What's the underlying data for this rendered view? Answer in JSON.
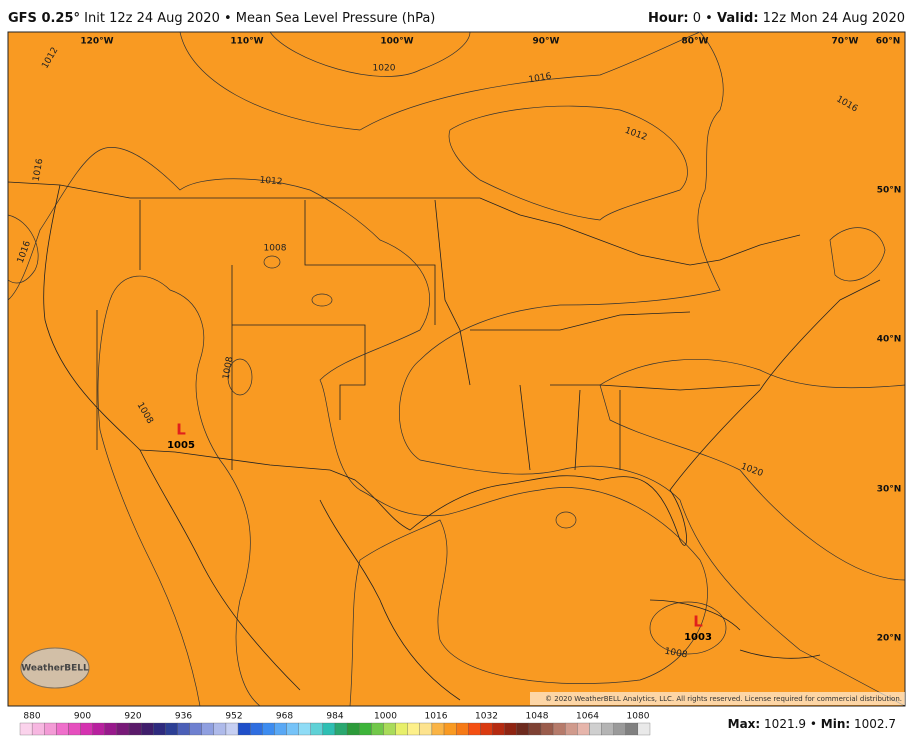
{
  "header": {
    "model": "GFS 0.25°",
    "subtitle": "Init 12z 24 Aug 2020 • Mean Sea Level Pressure (hPa)",
    "hour_label": "Hour:",
    "hour": "0 •",
    "valid_label": "Valid:",
    "valid": "12z Mon 24 Aug 2020"
  },
  "map": {
    "lon_labels": [
      "120°W",
      "110°W",
      "100°W",
      "90°W",
      "80°W",
      "70°W",
      "60°N"
    ],
    "lat_labels": [
      "50°N",
      "40°N",
      "30°N",
      "20°N"
    ],
    "contour_labels": [
      "1012",
      "1020",
      "1016",
      "1016",
      "1012",
      "1012",
      "1016",
      "1016",
      "1008",
      "1008",
      "1008",
      "1020",
      "1008"
    ],
    "lows": [
      {
        "symbol": "L",
        "value": "1005"
      },
      {
        "symbol": "L",
        "value": "1003"
      }
    ],
    "logo": "WeatherBELL",
    "copyright": "© 2020 WeatherBELL Analytics, LLC. All rights reserved. License required for commercial distribution."
  },
  "colorbar": {
    "labels": [
      "880",
      "900",
      "920",
      "936",
      "952",
      "968",
      "984",
      "1000",
      "1016",
      "1032",
      "1048",
      "1064",
      "1080"
    ]
  },
  "footer": {
    "max_label": "Max:",
    "max": "1021.9 •",
    "min_label": "Min:",
    "min": "1002.7"
  }
}
